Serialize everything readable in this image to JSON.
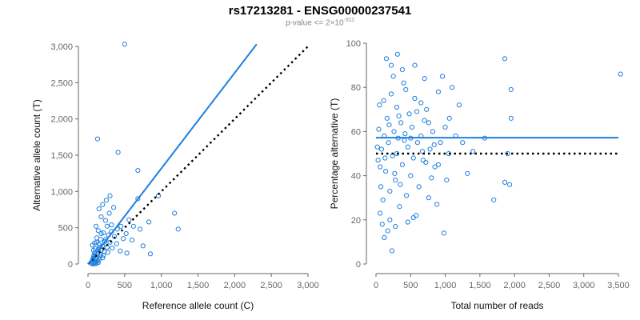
{
  "title": "rs17213281 - ENSG00000237541",
  "subtitle": {
    "prefix": "p-value <= 2×10",
    "exponent": "-311"
  },
  "colors": {
    "series": "#1e7fe0",
    "reference_line": "#000000",
    "axis": "#666666"
  },
  "chart_data": [
    {
      "type": "scatter",
      "xlabel": "Reference allele count (C)",
      "ylabel": "Alternative allele count (T)",
      "xlim": [
        0,
        3000
      ],
      "ylim": [
        0,
        3000
      ],
      "xticks": [
        0,
        500,
        1000,
        1500,
        2000,
        2500,
        3000
      ],
      "yticks": [
        0,
        500,
        1000,
        1500,
        2000,
        2500,
        3000
      ],
      "xtick_labels": [
        "0",
        "500",
        "1,000",
        "1,500",
        "2,000",
        "2,500",
        "3,000"
      ],
      "ytick_labels": [
        "0",
        "500",
        "1,000",
        "1,500",
        "2,000",
        "2,500",
        "3,000"
      ],
      "fit_line": {
        "x": [
          0,
          2300
        ],
        "y": [
          0,
          3030
        ]
      },
      "reference_line": {
        "x": [
          0,
          3000
        ],
        "y": [
          0,
          3000
        ]
      },
      "points": [
        [
          500,
          3030
        ],
        [
          130,
          1725
        ],
        [
          410,
          1540
        ],
        [
          680,
          1290
        ],
        [
          1180,
          700
        ],
        [
          1230,
          480
        ],
        [
          830,
          580
        ],
        [
          960,
          940
        ],
        [
          680,
          900
        ],
        [
          300,
          940
        ],
        [
          250,
          880
        ],
        [
          200,
          820
        ],
        [
          350,
          780
        ],
        [
          150,
          760
        ],
        [
          290,
          700
        ],
        [
          180,
          650
        ],
        [
          240,
          600
        ],
        [
          320,
          540
        ],
        [
          110,
          520
        ],
        [
          400,
          480
        ],
        [
          140,
          460
        ],
        [
          210,
          430
        ],
        [
          280,
          400
        ],
        [
          360,
          380
        ],
        [
          120,
          360
        ],
        [
          170,
          340
        ],
        [
          230,
          310
        ],
        [
          300,
          300
        ],
        [
          90,
          290
        ],
        [
          150,
          270
        ],
        [
          200,
          250
        ],
        [
          260,
          230
        ],
        [
          330,
          220
        ],
        [
          100,
          210
        ],
        [
          140,
          200
        ],
        [
          180,
          190
        ],
        [
          220,
          170
        ],
        [
          270,
          160
        ],
        [
          90,
          150
        ],
        [
          130,
          140
        ],
        [
          170,
          130
        ],
        [
          210,
          120
        ],
        [
          80,
          110
        ],
        [
          120,
          100
        ],
        [
          160,
          95
        ],
        [
          200,
          85
        ],
        [
          70,
          80
        ],
        [
          110,
          70
        ],
        [
          150,
          60
        ],
        [
          90,
          50
        ],
        [
          130,
          40
        ],
        [
          60,
          35
        ],
        [
          100,
          25
        ],
        [
          140,
          20
        ],
        [
          80,
          15
        ],
        [
          50,
          10
        ],
        [
          110,
          8
        ],
        [
          70,
          5
        ],
        [
          95,
          3
        ],
        [
          55,
          2
        ],
        [
          450,
          520
        ],
        [
          520,
          420
        ],
        [
          600,
          330
        ],
        [
          750,
          250
        ],
        [
          850,
          140
        ],
        [
          560,
          610
        ],
        [
          620,
          520
        ],
        [
          480,
          350
        ],
        [
          390,
          280
        ],
        [
          440,
          180
        ],
        [
          530,
          150
        ],
        [
          710,
          480
        ],
        [
          260,
          520
        ],
        [
          320,
          450
        ],
        [
          180,
          420
        ],
        [
          240,
          340
        ],
        [
          120,
          300
        ],
        [
          160,
          230
        ],
        [
          60,
          260
        ],
        [
          75,
          190
        ],
        [
          85,
          120
        ],
        [
          65,
          60
        ]
      ]
    },
    {
      "type": "scatter",
      "xlabel": "Total number of reads",
      "ylabel": "Percentage alternative (T)",
      "xlim": [
        0,
        3500
      ],
      "ylim": [
        0,
        100
      ],
      "xticks": [
        0,
        500,
        1000,
        1500,
        2000,
        2500,
        3000,
        3500
      ],
      "yticks": [
        0,
        20,
        40,
        60,
        80,
        100
      ],
      "xtick_labels": [
        "0",
        "500",
        "1,000",
        "1,500",
        "2,000",
        "2,500",
        "3,000",
        "3,500"
      ],
      "ytick_labels": [
        "0",
        "20",
        "40",
        "60",
        "80",
        "100"
      ],
      "fit_line": {
        "x": [
          0,
          3500
        ],
        "y": [
          57.2,
          57.2
        ]
      },
      "reference_line": {
        "x": [
          0,
          3500
        ],
        "y": [
          50,
          50
        ]
      },
      "points": [
        [
          3530,
          86
        ],
        [
          1860,
          93
        ],
        [
          1950,
          79
        ],
        [
          1950,
          66
        ],
        [
          1930,
          36
        ],
        [
          1860,
          37
        ],
        [
          1900,
          50
        ],
        [
          1570,
          57
        ],
        [
          1700,
          29
        ],
        [
          1320,
          41
        ],
        [
          1200,
          72
        ],
        [
          1100,
          80
        ],
        [
          1050,
          50
        ],
        [
          1020,
          38
        ],
        [
          960,
          85
        ],
        [
          900,
          78
        ],
        [
          880,
          27
        ],
        [
          850,
          44
        ],
        [
          820,
          60
        ],
        [
          780,
          52
        ],
        [
          760,
          30
        ],
        [
          730,
          70
        ],
        [
          700,
          65
        ],
        [
          680,
          47
        ],
        [
          650,
          58
        ],
        [
          620,
          35
        ],
        [
          600,
          55
        ],
        [
          580,
          22
        ],
        [
          560,
          75
        ],
        [
          540,
          48
        ],
        [
          520,
          62
        ],
        [
          500,
          40
        ],
        [
          480,
          68
        ],
        [
          460,
          53
        ],
        [
          440,
          31
        ],
        [
          420,
          59
        ],
        [
          400,
          82
        ],
        [
          380,
          45
        ],
        [
          360,
          64
        ],
        [
          340,
          26
        ],
        [
          320,
          57
        ],
        [
          300,
          71
        ],
        [
          280,
          38
        ],
        [
          260,
          60
        ],
        [
          240,
          49
        ],
        [
          220,
          77
        ],
        [
          200,
          33
        ],
        [
          180,
          55
        ],
        [
          160,
          66
        ],
        [
          140,
          42
        ],
        [
          120,
          58
        ],
        [
          100,
          29
        ],
        [
          80,
          52
        ],
        [
          60,
          44
        ],
        [
          40,
          61
        ],
        [
          30,
          47
        ],
        [
          20,
          53
        ],
        [
          150,
          93
        ],
        [
          220,
          90
        ],
        [
          310,
          95
        ],
        [
          380,
          88
        ],
        [
          250,
          85
        ],
        [
          170,
          15
        ],
        [
          230,
          6
        ],
        [
          120,
          12
        ],
        [
          90,
          18
        ],
        [
          60,
          23
        ],
        [
          200,
          20
        ],
        [
          280,
          17
        ],
        [
          460,
          19
        ],
        [
          540,
          21
        ],
        [
          980,
          14
        ],
        [
          650,
          73
        ],
        [
          720,
          46
        ],
        [
          800,
          39
        ],
        [
          930,
          55
        ],
        [
          1000,
          62
        ],
        [
          1150,
          58
        ],
        [
          1250,
          55
        ],
        [
          700,
          84
        ],
        [
          560,
          90
        ],
        [
          430,
          79
        ],
        [
          350,
          36
        ],
        [
          300,
          50
        ],
        [
          50,
          72
        ],
        [
          70,
          35
        ],
        [
          110,
          74
        ],
        [
          130,
          48
        ],
        [
          190,
          63
        ],
        [
          270,
          41
        ],
        [
          330,
          67
        ],
        [
          410,
          56
        ],
        [
          500,
          57
        ],
        [
          590,
          69
        ],
        [
          670,
          51
        ],
        [
          760,
          64
        ],
        [
          840,
          54
        ],
        [
          900,
          45
        ],
        [
          1060,
          66
        ],
        [
          1400,
          51
        ]
      ]
    }
  ]
}
